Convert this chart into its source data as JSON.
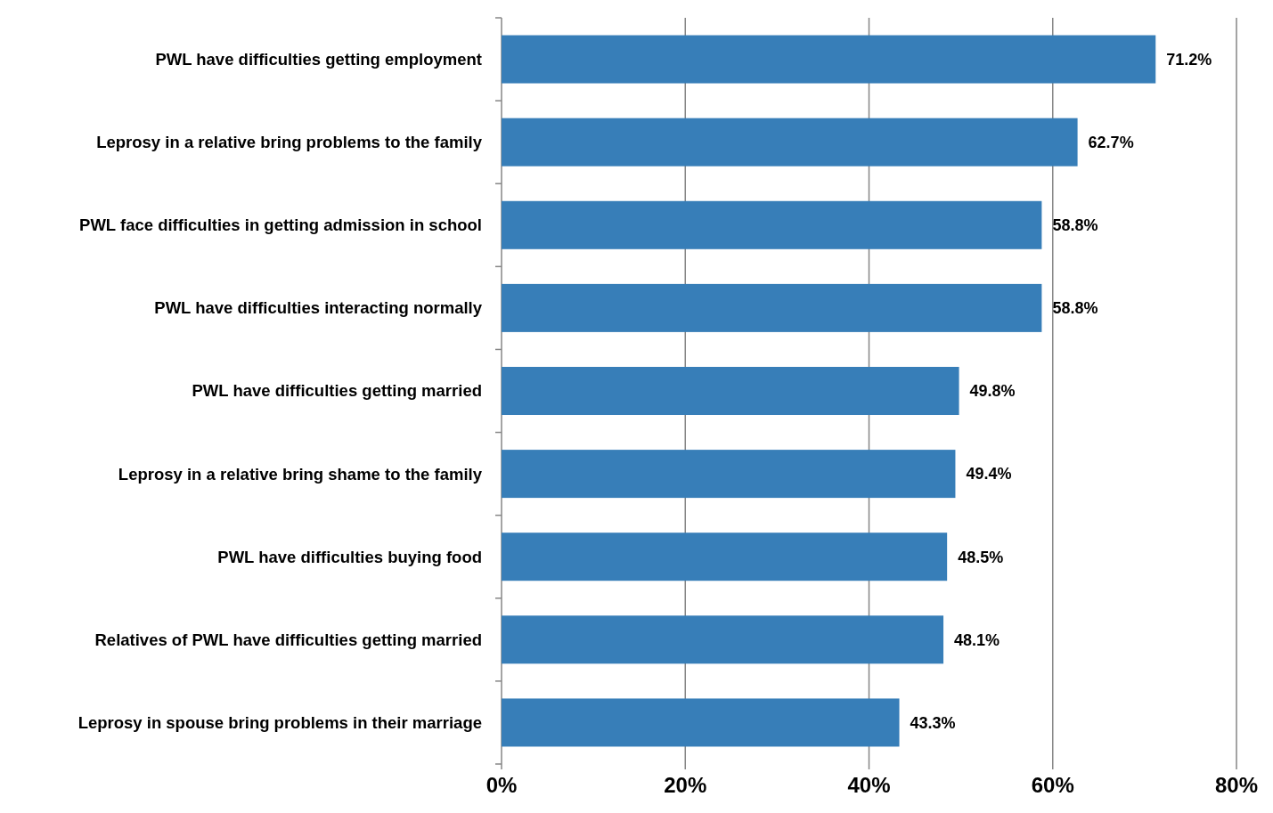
{
  "chart_data": {
    "type": "bar",
    "orientation": "horizontal",
    "categories": [
      "PWL  have difficulties getting employment",
      "Leprosy in a relative bring problems to the family",
      "PWL face difficulties in getting admission in school",
      "PWL have difficulties interacting normally",
      "PWL have difficulties getting married",
      "Leprosy in a relative bring shame to the family",
      "PWL have difficulties buying food",
      "Relatives of PWL have difficulties getting married",
      "Leprosy in spouse bring problems in their marriage"
    ],
    "values": [
      71.2,
      62.7,
      58.8,
      58.8,
      49.8,
      49.4,
      48.5,
      48.1,
      43.3
    ],
    "value_labels": [
      "71.2%",
      "62.7%",
      "58.8%",
      "58.8%",
      "49.8%",
      "49.4%",
      "48.5%",
      "48.1%",
      "43.3%"
    ],
    "color": "#377eb8",
    "xlim": [
      0,
      80
    ],
    "xticks": [
      {
        "value": 0,
        "label": "0%"
      },
      {
        "value": 20,
        "label": "20%"
      },
      {
        "value": 40,
        "label": "40%"
      },
      {
        "value": 60,
        "label": "60%"
      },
      {
        "value": 80,
        "label": "80%"
      }
    ],
    "grid": "x"
  }
}
